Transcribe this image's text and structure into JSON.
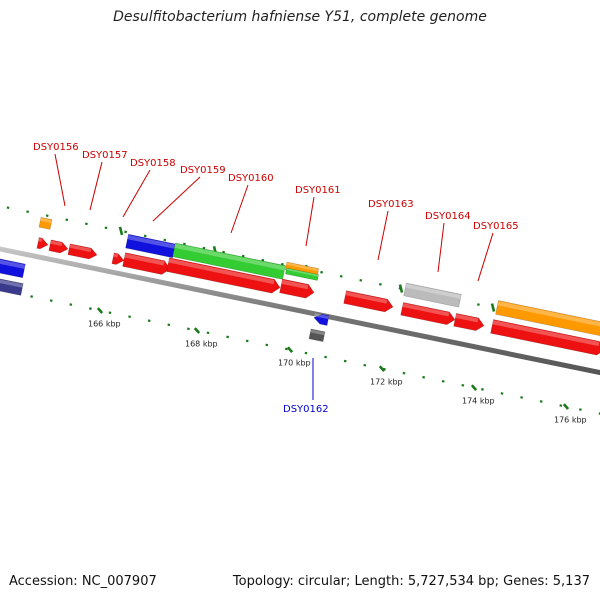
{
  "title": "Desulfitobacterium hafniense Y51, complete genome",
  "footer": {
    "accession": "Accession: NC_007907",
    "summary": "Topology: circular; Length: 5,727,534 bp; Genes: 5,137"
  },
  "colors": {
    "backbone": "#808080",
    "forward_label": "#cc0000",
    "reverse_label": "#0000cc",
    "tick": "#1a7a1a",
    "red": "#ee1111",
    "blue": "#1111dd",
    "green": "#33cc33",
    "orange": "#ff9900",
    "gray": "#bbbbbb",
    "darkgray": "#555555",
    "navy": "#3a3a8c"
  },
  "ticks": [
    {
      "label": "166 kbp"
    },
    {
      "label": "168 kbp"
    },
    {
      "label": "170 kbp"
    },
    {
      "label": "172 kbp"
    },
    {
      "label": "174 kbp"
    },
    {
      "label": "176 kbp"
    }
  ],
  "gene_labels": [
    {
      "text": "DSY0156",
      "strand": "forward"
    },
    {
      "text": "DSY0157",
      "strand": "forward"
    },
    {
      "text": "DSY0158",
      "strand": "forward"
    },
    {
      "text": "DSY0159",
      "strand": "forward"
    },
    {
      "text": "DSY0160",
      "strand": "forward"
    },
    {
      "text": "DSY0161",
      "strand": "forward"
    },
    {
      "text": "DSY0162",
      "strand": "reverse"
    },
    {
      "text": "DSY0163",
      "strand": "forward"
    },
    {
      "text": "DSY0164",
      "strand": "forward"
    },
    {
      "text": "DSY0165",
      "strand": "forward"
    }
  ]
}
